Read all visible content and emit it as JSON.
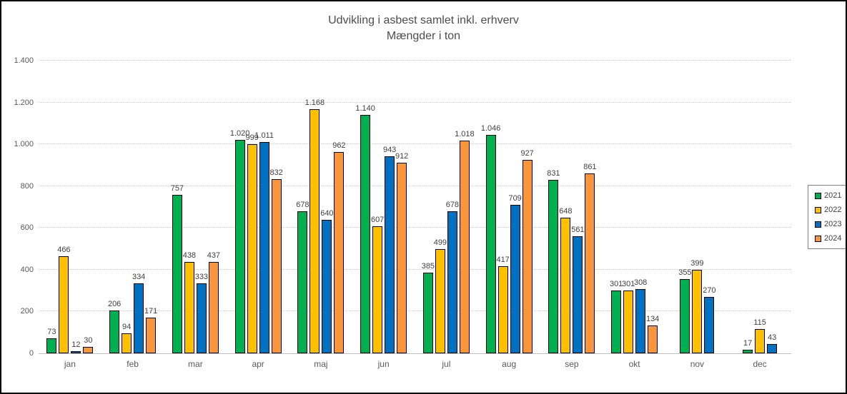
{
  "chart_data": {
    "type": "bar",
    "title": "Udvikling i asbest samlet inkl. erhverv",
    "subtitle": "Mængder i ton",
    "categories": [
      "jan",
      "feb",
      "mar",
      "apr",
      "maj",
      "jun",
      "jul",
      "aug",
      "sep",
      "okt",
      "nov",
      "dec"
    ],
    "series": [
      {
        "name": "2021",
        "color": "#00B050",
        "values": [
          73,
          206,
          757,
          1020,
          678,
          1140,
          385,
          1046,
          831,
          301,
          355,
          17
        ]
      },
      {
        "name": "2022",
        "color": "#FFC000",
        "values": [
          466,
          94,
          438,
          999,
          1168,
          607,
          499,
          417,
          648,
          301,
          399,
          115
        ]
      },
      {
        "name": "2023",
        "color": "#0070C0",
        "values": [
          12,
          334,
          333,
          1011,
          640,
          943,
          678,
          709,
          561,
          308,
          270,
          43
        ]
      },
      {
        "name": "2024",
        "color": "#F9963B",
        "values": [
          30,
          171,
          437,
          832,
          962,
          912,
          1018,
          927,
          861,
          134,
          null,
          null
        ]
      }
    ],
    "ylim": [
      0,
      1400
    ],
    "ytick_step": 200,
    "ytick_labels": [
      "0",
      "200",
      "400",
      "600",
      "800",
      "1.000",
      "1.200",
      "1.400"
    ],
    "grid": "horizontal-dotted",
    "legend_position": "right",
    "number_format": "danish-dot-thousands",
    "axis_color": "#bfbfbf",
    "label_color": "#404040"
  }
}
